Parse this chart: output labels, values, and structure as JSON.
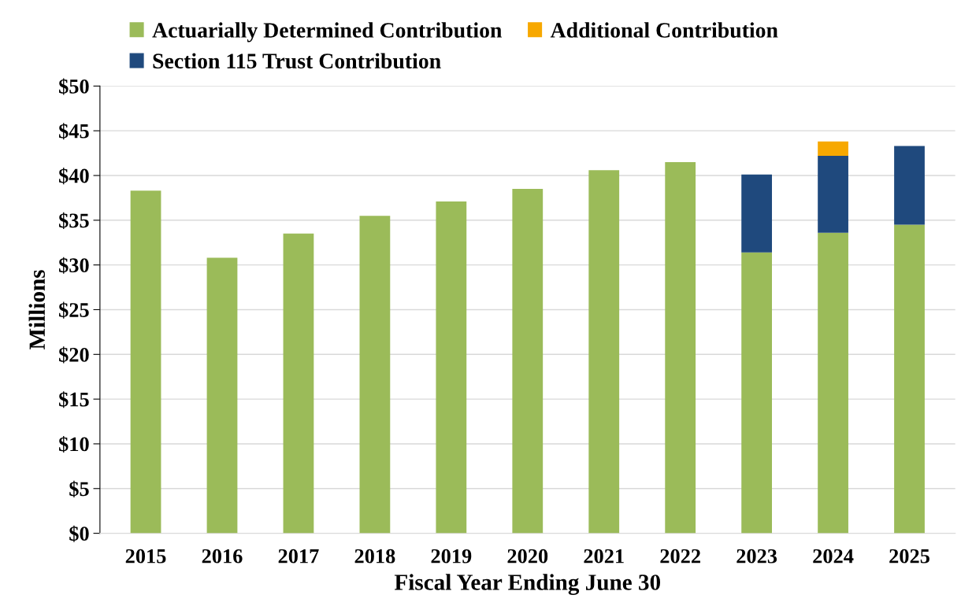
{
  "chart_data": {
    "type": "bar",
    "stacked": true,
    "xlabel": "Fiscal Year Ending June 30",
    "ylabel": "Millions",
    "categories": [
      "2015",
      "2016",
      "2017",
      "2018",
      "2019",
      "2020",
      "2021",
      "2022",
      "2023",
      "2024",
      "2025"
    ],
    "series": [
      {
        "name": "Actuarially Determined Contribution",
        "color": "#9bbb59",
        "values": [
          38.3,
          30.8,
          33.5,
          35.5,
          37.1,
          38.5,
          40.6,
          41.5,
          31.4,
          33.6,
          34.5
        ]
      },
      {
        "name": "Section 115 Trust Contribution",
        "color": "#1f497d",
        "values": [
          null,
          null,
          null,
          null,
          null,
          null,
          null,
          null,
          8.7,
          8.6,
          8.8
        ]
      },
      {
        "name": "Additional Contribution",
        "color": "#f7a800",
        "values": [
          null,
          null,
          null,
          null,
          null,
          null,
          null,
          null,
          null,
          1.6,
          null
        ]
      }
    ],
    "ylim": [
      0,
      50
    ],
    "yticks": [
      {
        "value": 0,
        "label": "$0"
      },
      {
        "value": 5,
        "label": "$5"
      },
      {
        "value": 10,
        "label": "$10"
      },
      {
        "value": 15,
        "label": "$15"
      },
      {
        "value": 20,
        "label": "$20"
      },
      {
        "value": 25,
        "label": "$25"
      },
      {
        "value": 30,
        "label": "$30"
      },
      {
        "value": 35,
        "label": "$35"
      },
      {
        "value": 40,
        "label": "$40"
      },
      {
        "value": 45,
        "label": "$45"
      },
      {
        "value": 50,
        "label": "$50"
      }
    ],
    "grid": "y",
    "legend": "top"
  }
}
